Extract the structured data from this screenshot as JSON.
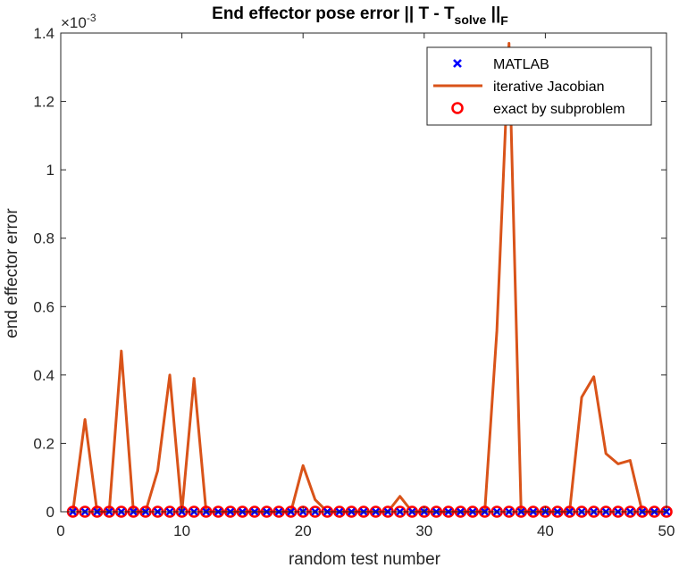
{
  "chart_data": {
    "type": "line",
    "title": "End effector pose error || T - T",
    "title_subscript": "solve",
    "title_suffix": " ||",
    "title_suffix_subscript": "F",
    "xlabel": "random test number",
    "ylabel": "end effector error",
    "xlim": [
      0,
      50
    ],
    "ylim": [
      0,
      0.0014
    ],
    "y_exponent_label": "×10",
    "y_exponent_power": "-3",
    "x_ticks": [
      0,
      10,
      20,
      30,
      40,
      50
    ],
    "x_tick_labels": [
      "0",
      "10",
      "20",
      "30",
      "40",
      "50"
    ],
    "y_ticks": [
      0,
      0.0002,
      0.0004,
      0.0006,
      0.0008,
      0.001,
      0.0012,
      0.0014
    ],
    "y_tick_labels": [
      "0",
      "0.2",
      "0.4",
      "0.6",
      "0.8",
      "1",
      "1.2",
      "1.4"
    ],
    "grid": false,
    "legend_position": "top-right",
    "x": [
      1,
      2,
      3,
      4,
      5,
      6,
      7,
      8,
      9,
      10,
      11,
      12,
      13,
      14,
      15,
      16,
      17,
      18,
      19,
      20,
      21,
      22,
      23,
      24,
      25,
      26,
      27,
      28,
      29,
      30,
      31,
      32,
      33,
      34,
      35,
      36,
      37,
      38,
      39,
      40,
      41,
      42,
      43,
      44,
      45,
      46,
      47,
      48,
      49,
      50
    ],
    "series": [
      {
        "name": "MATLAB",
        "style": "marker-x",
        "color": "#0000ff",
        "values": [
          0,
          0,
          0,
          0,
          0,
          0,
          0,
          0,
          0,
          0,
          0,
          0,
          0,
          0,
          0,
          0,
          0,
          0,
          0,
          0,
          0,
          0,
          0,
          0,
          0,
          0,
          0,
          0,
          0,
          0,
          0,
          0,
          0,
          0,
          0,
          0,
          0,
          0,
          0,
          0,
          0,
          0,
          0,
          0,
          0,
          0,
          0,
          0,
          0,
          0
        ]
      },
      {
        "name": "iterative Jacobian",
        "style": "line",
        "color": "#d95319",
        "values": [
          0,
          0.00027,
          0,
          0,
          0.00047,
          0,
          0,
          0.00012,
          0.0004,
          0,
          0.00039,
          0,
          0,
          0,
          0,
          0,
          0,
          0,
          0,
          0.000135,
          3.5e-05,
          0,
          0,
          0,
          0,
          0,
          0,
          4.5e-05,
          0,
          0,
          0,
          0,
          0,
          0,
          0,
          0.00053,
          0.00137,
          0,
          0,
          0,
          0,
          0,
          0.000335,
          0.000395,
          0.00017,
          0.00014,
          0.00015,
          0,
          0,
          0
        ]
      },
      {
        "name": "exact by subproblem",
        "style": "marker-circle",
        "color": "#ff0000",
        "values": [
          0,
          0,
          0,
          0,
          0,
          0,
          0,
          0,
          0,
          0,
          0,
          0,
          0,
          0,
          0,
          0,
          0,
          0,
          0,
          0,
          0,
          0,
          0,
          0,
          0,
          0,
          0,
          0,
          0,
          0,
          0,
          0,
          0,
          0,
          0,
          0,
          0,
          0,
          0,
          0,
          0,
          0,
          0,
          0,
          0,
          0,
          0,
          0,
          0,
          0
        ]
      }
    ]
  }
}
